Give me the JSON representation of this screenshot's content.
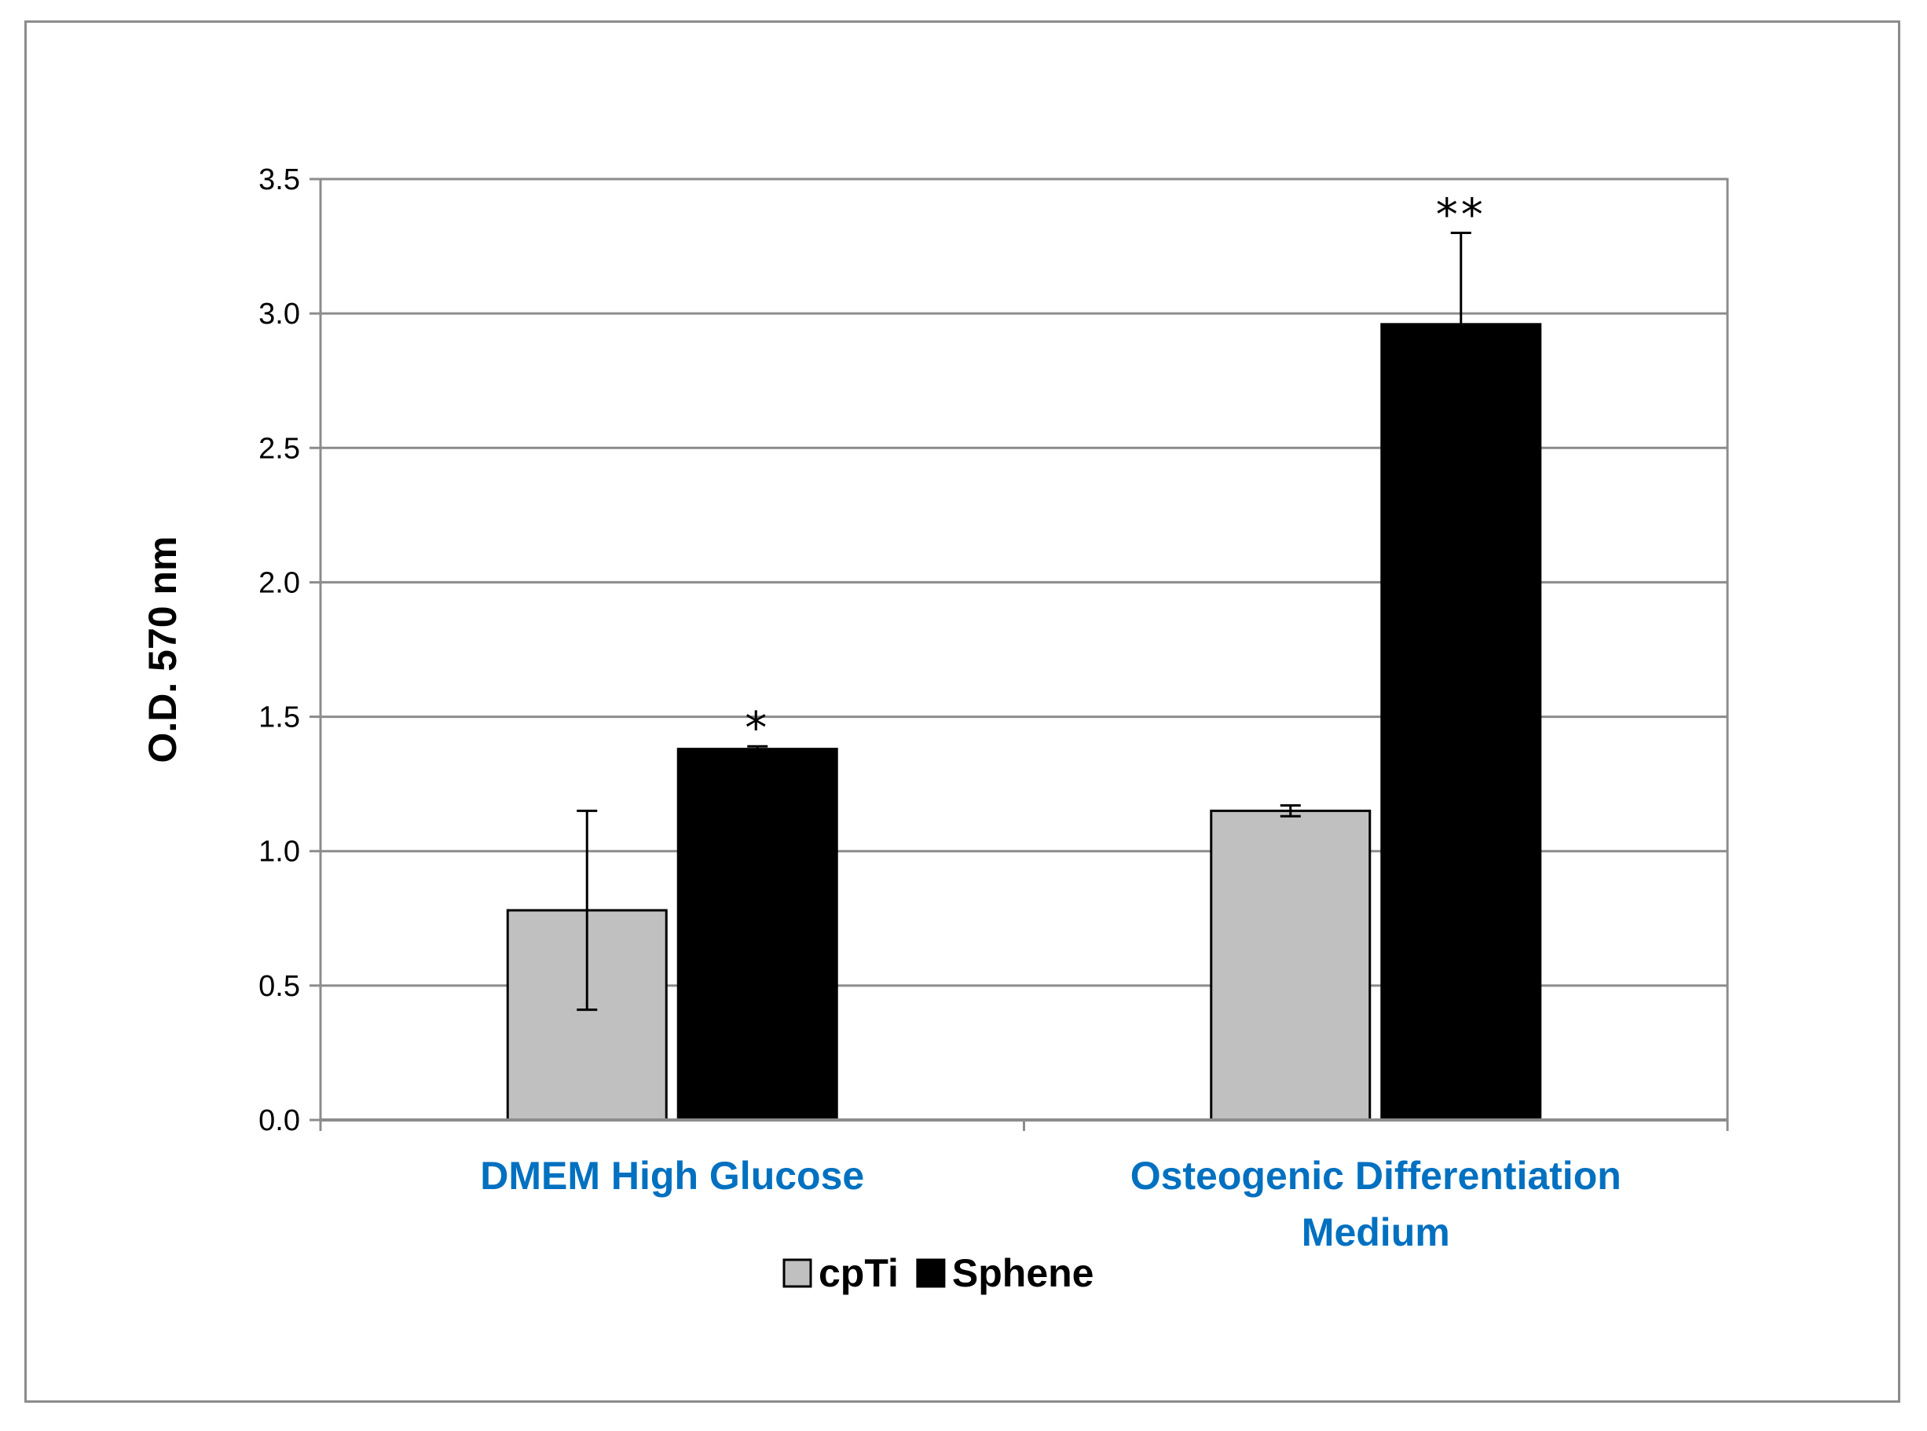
{
  "chart_data": {
    "type": "bar",
    "title": "",
    "xlabel": "",
    "ylabel": "O.D. 570 nm",
    "ylim": [
      0,
      3.5
    ],
    "yticks": [
      "0.0",
      "0.5",
      "1.0",
      "1.5",
      "2.0",
      "2.5",
      "3.0",
      "3.5"
    ],
    "grid": true,
    "categories": [
      [
        "DMEM High Glucose"
      ],
      [
        "Osteogenic Differentiation",
        "Medium"
      ]
    ],
    "series": [
      {
        "name": "cpTi",
        "color": "#c0c0c0",
        "values": [
          0.78,
          1.15
        ],
        "errors": [
          0.37,
          0.02
        ]
      },
      {
        "name": "Sphene",
        "color": "#000000",
        "values": [
          1.38,
          2.96
        ],
        "errors": [
          0.01,
          0.34
        ]
      }
    ],
    "significance": [
      {
        "series": 1,
        "category": 0,
        "label": "*"
      },
      {
        "series": 1,
        "category": 1,
        "label": "**"
      }
    ],
    "legend": {
      "position": "bottom",
      "entries": [
        "cpTi",
        "Sphene"
      ]
    }
  }
}
